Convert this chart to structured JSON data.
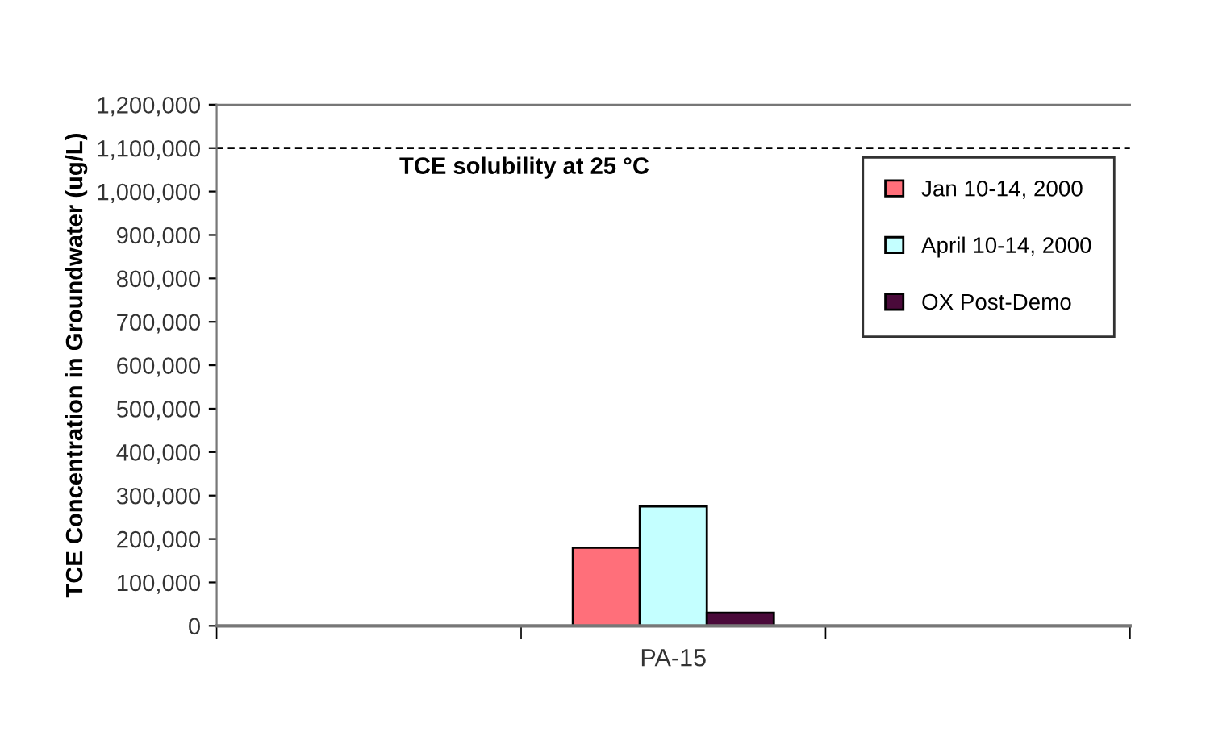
{
  "chart_data": {
    "type": "bar",
    "ylabel": "TCE Concentration in Groundwater (ug/L)",
    "categories": [
      null,
      "PA-15",
      null
    ],
    "series": [
      {
        "name": "Jan 10-14, 2000",
        "color": "#ff6f7a",
        "values": [
          null,
          180000,
          null
        ]
      },
      {
        "name": "April 10-14, 2000",
        "color": "#c4ffff",
        "values": [
          null,
          275000,
          null
        ]
      },
      {
        "name": "OX Post-Demo",
        "color": "#4a0a3a",
        "values": [
          null,
          30000,
          null
        ]
      }
    ],
    "ylim": [
      0,
      1200000
    ],
    "yticks": [
      {
        "value": 0,
        "label": "0"
      },
      {
        "value": 100000,
        "label": "100,000"
      },
      {
        "value": 200000,
        "label": "200,000"
      },
      {
        "value": 300000,
        "label": "300,000"
      },
      {
        "value": 400000,
        "label": "400,000"
      },
      {
        "value": 500000,
        "label": "500,000"
      },
      {
        "value": 600000,
        "label": "600,000"
      },
      {
        "value": 700000,
        "label": "700,000"
      },
      {
        "value": 800000,
        "label": "800,000"
      },
      {
        "value": 900000,
        "label": "900,000"
      },
      {
        "value": 1000000,
        "label": "1,000,000"
      },
      {
        "value": 1100000,
        "label": "1,100,000"
      },
      {
        "value": 1200000,
        "label": "1,200,000"
      }
    ],
    "ref_lines": [
      {
        "axis": "y",
        "value": 1100000,
        "label": "TCE solubility at 25 °C",
        "color": "#000000",
        "line_style": "dashed"
      }
    ],
    "grid": false,
    "legend": "top right"
  }
}
